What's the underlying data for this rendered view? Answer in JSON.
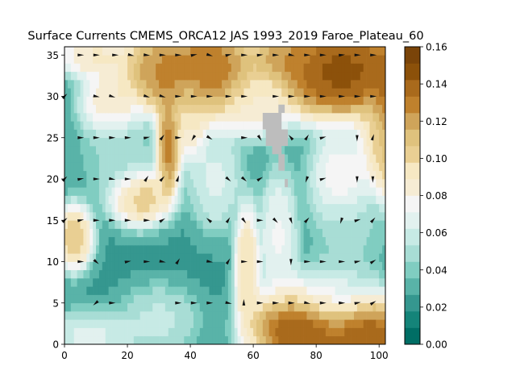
{
  "chart_data": {
    "type": "heatmap",
    "title": "Surface Currents CMEMS_ORCA12 JAS 1993_2019 Faroe_Plateau_60",
    "xlabel": "",
    "ylabel": "",
    "xlim": [
      0,
      102
    ],
    "ylim": [
      0,
      36
    ],
    "x_ticks": [
      "0",
      "20",
      "40",
      "60",
      "80",
      "100"
    ],
    "y_ticks": [
      "0",
      "5",
      "10",
      "15",
      "20",
      "25",
      "30",
      "35"
    ],
    "x_tick_values": [
      0,
      20,
      40,
      60,
      80,
      100
    ],
    "y_tick_values": [
      0,
      5,
      10,
      15,
      20,
      25,
      30,
      35
    ],
    "colorbar": {
      "cmap": "BrBG_r",
      "range": [
        0.0,
        0.16
      ],
      "levels": 18,
      "ticks": [
        "0.00",
        "0.02",
        "0.04",
        "0.06",
        "0.08",
        "0.10",
        "0.12",
        "0.14",
        "0.16"
      ],
      "tick_values": [
        0.0,
        0.02,
        0.04,
        0.06,
        0.08,
        0.1,
        0.12,
        0.14,
        0.16
      ]
    },
    "land_mask_color": "#bdbdbd",
    "land_cells": [
      [
        63,
        26
      ],
      [
        69,
        26
      ],
      [
        71,
        25
      ],
      [
        68,
        21
      ],
      [
        71,
        18
      ]
    ],
    "field_features": [
      {
        "kind": "blob",
        "x": 88,
        "y": 33,
        "value": 0.165,
        "sx": 12,
        "sy": 3
      },
      {
        "kind": "blob",
        "x": 105,
        "y": 28,
        "value": 0.16,
        "sx": 4,
        "sy": 5
      },
      {
        "kind": "blob",
        "x": 75,
        "y": 2,
        "value": 0.165,
        "sx": 8,
        "sy": 2.5
      },
      {
        "kind": "blob",
        "x": 96,
        "y": 1,
        "value": 0.16,
        "sx": 7,
        "sy": 2.5
      },
      {
        "kind": "blob",
        "x": 46,
        "y": 33,
        "value": 0.15,
        "sx": 8,
        "sy": 3
      },
      {
        "kind": "blob",
        "x": 31,
        "y": 33,
        "value": 0.14,
        "sx": 7,
        "sy": 2.5
      },
      {
        "kind": "blob",
        "x": 33,
        "y": 24,
        "value": 0.15,
        "sx": 2,
        "sy": 3
      },
      {
        "kind": "blob",
        "x": 24,
        "y": 18,
        "value": 0.12,
        "sx": 5,
        "sy": 1.8
      },
      {
        "kind": "blob",
        "x": 3,
        "y": 13,
        "value": 0.12,
        "sx": 3,
        "sy": 2
      },
      {
        "kind": "blob",
        "x": 58,
        "y": 9,
        "value": 0.11,
        "sx": 2,
        "sy": 4
      },
      {
        "kind": "blob",
        "x": 100,
        "y": 25,
        "value": 0.1,
        "sx": 3,
        "sy": 3
      },
      {
        "kind": "blob",
        "x": 40,
        "y": 28,
        "value": 0.1,
        "sx": 3,
        "sy": 3
      },
      {
        "kind": "blob",
        "x": 15,
        "y": 29,
        "value": 0.1,
        "sx": 5,
        "sy": 2
      },
      {
        "kind": "blob",
        "x": 10,
        "y": 35,
        "value": 0.1,
        "sx": 6,
        "sy": 1.5
      },
      {
        "kind": "blob",
        "x": 70,
        "y": 35,
        "value": 0.13,
        "sx": 5,
        "sy": 1.5
      },
      {
        "kind": "blob",
        "x": 60,
        "y": 29,
        "value": 0.09,
        "sx": 6,
        "sy": 2
      },
      {
        "kind": "blob",
        "x": 88,
        "y": 20,
        "value": 0.085,
        "sx": 5,
        "sy": 3
      },
      {
        "kind": "blob",
        "x": 48,
        "y": 20,
        "value": 0.07,
        "sx": 4,
        "sy": 3
      },
      {
        "kind": "blob",
        "x": 68,
        "y": 13,
        "value": 0.08,
        "sx": 3,
        "sy": 4
      },
      {
        "kind": "blob",
        "x": 84,
        "y": 6,
        "value": 0.07,
        "sx": 8,
        "sy": 2
      },
      {
        "kind": "blob",
        "x": 8,
        "y": 1,
        "value": 0.07,
        "sx": 8,
        "sy": 1.5
      },
      {
        "kind": "blob",
        "x": 30,
        "y": 3,
        "value": 0.06,
        "sx": 6,
        "sy": 2
      },
      {
        "kind": "blob",
        "x": 90,
        "y": 13,
        "value": 0.05,
        "sx": 5,
        "sy": 3
      },
      {
        "kind": "blob",
        "x": 18,
        "y": 23,
        "value": 0.05,
        "sx": 6,
        "sy": 3
      }
    ],
    "background_value": 0.025,
    "vector_rows": [
      5,
      10,
      15,
      20,
      25,
      30,
      35
    ],
    "vectors": [
      {
        "x": 5,
        "y": 35,
        "u": 1,
        "v": 0
      },
      {
        "x": 10,
        "y": 35,
        "u": 1,
        "v": 0
      },
      {
        "x": 16,
        "y": 35,
        "u": 1,
        "v": 0
      },
      {
        "x": 21,
        "y": 35,
        "u": 1,
        "v": -0.2
      },
      {
        "x": 26,
        "y": 35,
        "u": 1,
        "v": -0.1
      },
      {
        "x": 31,
        "y": 35,
        "u": 1,
        "v": 0
      },
      {
        "x": 36,
        "y": 35,
        "u": 1,
        "v": 0
      },
      {
        "x": 41,
        "y": 35,
        "u": 1,
        "v": 0.2
      },
      {
        "x": 46,
        "y": 35,
        "u": 1,
        "v": -0.3
      },
      {
        "x": 52,
        "y": 35,
        "u": 1,
        "v": 0.2
      },
      {
        "x": 57,
        "y": 35,
        "u": 1,
        "v": 0
      },
      {
        "x": 62,
        "y": 35,
        "u": 1,
        "v": 0.1
      },
      {
        "x": 67,
        "y": 35,
        "u": 1,
        "v": 0
      },
      {
        "x": 72,
        "y": 35,
        "u": 1,
        "v": -0.2
      },
      {
        "x": 77,
        "y": 35,
        "u": 1,
        "v": 0
      },
      {
        "x": 82,
        "y": 35,
        "u": 1,
        "v": 0
      },
      {
        "x": 88,
        "y": 35,
        "u": 1,
        "v": 0.1
      },
      {
        "x": 93,
        "y": 35,
        "u": 1,
        "v": 0
      },
      {
        "x": 98,
        "y": 35,
        "u": 1,
        "v": 0
      },
      {
        "x": 0,
        "y": 30,
        "u": 0.6,
        "v": 0.6
      },
      {
        "x": 10,
        "y": 30,
        "u": 1,
        "v": -0.2
      },
      {
        "x": 15,
        "y": 30,
        "u": 1,
        "v": -0.3
      },
      {
        "x": 26,
        "y": 30,
        "u": 1,
        "v": -0.3
      },
      {
        "x": 31,
        "y": 30,
        "u": 1,
        "v": -0.3
      },
      {
        "x": 36,
        "y": 30,
        "u": 1,
        "v": 0
      },
      {
        "x": 41,
        "y": 30,
        "u": 1,
        "v": 0
      },
      {
        "x": 46,
        "y": 30,
        "u": 1,
        "v": 0
      },
      {
        "x": 52,
        "y": 30,
        "u": 1,
        "v": 0
      },
      {
        "x": 57,
        "y": 30,
        "u": 1,
        "v": 0
      },
      {
        "x": 67,
        "y": 30,
        "u": 1,
        "v": 0
      },
      {
        "x": 72,
        "y": 30,
        "u": 1,
        "v": 0
      },
      {
        "x": 77,
        "y": 30,
        "u": 1,
        "v": 0
      },
      {
        "x": 82,
        "y": 30,
        "u": 1,
        "v": 0
      },
      {
        "x": 88,
        "y": 30,
        "u": 1,
        "v": 0
      },
      {
        "x": 93,
        "y": 30,
        "u": 1,
        "v": 0
      },
      {
        "x": 98,
        "y": 30,
        "u": 1,
        "v": 0
      },
      {
        "x": 5,
        "y": 25,
        "u": 1,
        "v": 0
      },
      {
        "x": 10,
        "y": 25,
        "u": 1,
        "v": 0
      },
      {
        "x": 15,
        "y": 25,
        "u": 1,
        "v": 0
      },
      {
        "x": 20,
        "y": 25,
        "u": 1,
        "v": 0
      },
      {
        "x": 26,
        "y": 25,
        "u": 1,
        "v": 0.2
      },
      {
        "x": 31,
        "y": 25,
        "u": 0.6,
        "v": 0.8
      },
      {
        "x": 36,
        "y": 25,
        "u": 1,
        "v": 0
      },
      {
        "x": 41,
        "y": 25,
        "u": -0.5,
        "v": -0.8
      },
      {
        "x": 46,
        "y": 25,
        "u": 0.8,
        "v": -0.5
      },
      {
        "x": 57,
        "y": 25,
        "u": 1,
        "v": 0
      },
      {
        "x": 62,
        "y": 25,
        "u": 0.5,
        "v": -0.8
      },
      {
        "x": 72,
        "y": 25,
        "u": -0.6,
        "v": 0.7
      },
      {
        "x": 77,
        "y": 25,
        "u": 0.5,
        "v": 0.8
      },
      {
        "x": 82,
        "y": 25,
        "u": 1,
        "v": 0.3
      },
      {
        "x": 93,
        "y": 25,
        "u": 0,
        "v": -1
      },
      {
        "x": 98,
        "y": 25,
        "u": 0.3,
        "v": 0.9
      },
      {
        "x": 0,
        "y": 20,
        "u": 0.6,
        "v": 0.6
      },
      {
        "x": 5,
        "y": 20,
        "u": 1,
        "v": 0.2
      },
      {
        "x": 10,
        "y": 20,
        "u": 1,
        "v": 0
      },
      {
        "x": 15,
        "y": 20,
        "u": 1,
        "v": -0.2
      },
      {
        "x": 20,
        "y": 20,
        "u": 1,
        "v": 0
      },
      {
        "x": 26,
        "y": 20,
        "u": 0.5,
        "v": 0.8
      },
      {
        "x": 31,
        "y": 20,
        "u": 0.6,
        "v": 0.7
      },
      {
        "x": 36,
        "y": 20,
        "u": 0.3,
        "v": 0.9
      },
      {
        "x": 52,
        "y": 20,
        "u": 0.7,
        "v": -0.6
      },
      {
        "x": 57,
        "y": 20,
        "u": 0.7,
        "v": -0.6
      },
      {
        "x": 62,
        "y": 20,
        "u": 0.8,
        "v": 0.5
      },
      {
        "x": 77,
        "y": 20,
        "u": -0.3,
        "v": -0.9
      },
      {
        "x": 82,
        "y": 20,
        "u": 1,
        "v": 0.3
      },
      {
        "x": 93,
        "y": 20,
        "u": 0,
        "v": -1
      },
      {
        "x": 98,
        "y": 20,
        "u": 0,
        "v": -1
      },
      {
        "x": 0,
        "y": 15,
        "u": 0.7,
        "v": 0.6
      },
      {
        "x": 5,
        "y": 15,
        "u": 1,
        "v": 0.2
      },
      {
        "x": 10,
        "y": 15,
        "u": 1,
        "v": 0
      },
      {
        "x": 15,
        "y": 15,
        "u": 1,
        "v": 0
      },
      {
        "x": 20,
        "y": 15,
        "u": 1,
        "v": 0
      },
      {
        "x": 26,
        "y": 15,
        "u": 1,
        "v": 0
      },
      {
        "x": 31,
        "y": 15,
        "u": 0.8,
        "v": 0.5
      },
      {
        "x": 46,
        "y": 15,
        "u": -0.7,
        "v": 0.6
      },
      {
        "x": 52,
        "y": 15,
        "u": 0.5,
        "v": 0.8
      },
      {
        "x": 57,
        "y": 15,
        "u": 0.6,
        "v": -0.8
      },
      {
        "x": 62,
        "y": 15,
        "u": 1,
        "v": 0
      },
      {
        "x": 67,
        "y": 15,
        "u": 0.7,
        "v": -0.7
      },
      {
        "x": 72,
        "y": 15,
        "u": 0.3,
        "v": -0.9
      },
      {
        "x": 77,
        "y": 15,
        "u": 0.6,
        "v": 0.7
      },
      {
        "x": 88,
        "y": 15,
        "u": -0.3,
        "v": -0.9
      },
      {
        "x": 93,
        "y": 15,
        "u": 1,
        "v": 0.3
      },
      {
        "x": 98,
        "y": 15,
        "u": 0.6,
        "v": 0.7
      },
      {
        "x": 5,
        "y": 10,
        "u": 1,
        "v": 0
      },
      {
        "x": 10,
        "y": 10,
        "u": 0.7,
        "v": -0.6
      },
      {
        "x": 20,
        "y": 10,
        "u": 1,
        "v": 0.2
      },
      {
        "x": 26,
        "y": 10,
        "u": 1,
        "v": 0
      },
      {
        "x": 31,
        "y": 10,
        "u": 1,
        "v": -0.2
      },
      {
        "x": 36,
        "y": 10,
        "u": 0.5,
        "v": 0.8
      },
      {
        "x": 46,
        "y": 10,
        "u": 1,
        "v": -0.2
      },
      {
        "x": 52,
        "y": 10,
        "u": 0.5,
        "v": 0.8
      },
      {
        "x": 57,
        "y": 10,
        "u": 1,
        "v": 0
      },
      {
        "x": 62,
        "y": 10,
        "u": 1,
        "v": 0
      },
      {
        "x": 72,
        "y": 10,
        "u": 0,
        "v": -1
      },
      {
        "x": 77,
        "y": 10,
        "u": 1,
        "v": 0
      },
      {
        "x": 82,
        "y": 10,
        "u": 1,
        "v": 0
      },
      {
        "x": 88,
        "y": 10,
        "u": 1,
        "v": 0
      },
      {
        "x": 93,
        "y": 10,
        "u": 1,
        "v": 0.2
      },
      {
        "x": 98,
        "y": 10,
        "u": 0.8,
        "v": 0.5
      },
      {
        "x": 10,
        "y": 5,
        "u": -0.7,
        "v": -0.6
      },
      {
        "x": 15,
        "y": 5,
        "u": 1,
        "v": 0
      },
      {
        "x": 36,
        "y": 5,
        "u": 1,
        "v": 0
      },
      {
        "x": 41,
        "y": 5,
        "u": 1,
        "v": 0
      },
      {
        "x": 46,
        "y": 5,
        "u": 1,
        "v": 0
      },
      {
        "x": 52,
        "y": 5,
        "u": 1,
        "v": -0.2
      },
      {
        "x": 57,
        "y": 5,
        "u": 0,
        "v": 1
      },
      {
        "x": 62,
        "y": 5,
        "u": 1,
        "v": 0
      },
      {
        "x": 67,
        "y": 5,
        "u": 1,
        "v": 0
      },
      {
        "x": 72,
        "y": 5,
        "u": 1,
        "v": 0
      },
      {
        "x": 77,
        "y": 5,
        "u": 1,
        "v": -0.2
      },
      {
        "x": 82,
        "y": 5,
        "u": 1,
        "v": 0
      },
      {
        "x": 88,
        "y": 5,
        "u": 1,
        "v": 0
      },
      {
        "x": 93,
        "y": 5,
        "u": 1,
        "v": 0.2
      },
      {
        "x": 98,
        "y": 5,
        "u": 0.8,
        "v": 0.5
      }
    ]
  }
}
